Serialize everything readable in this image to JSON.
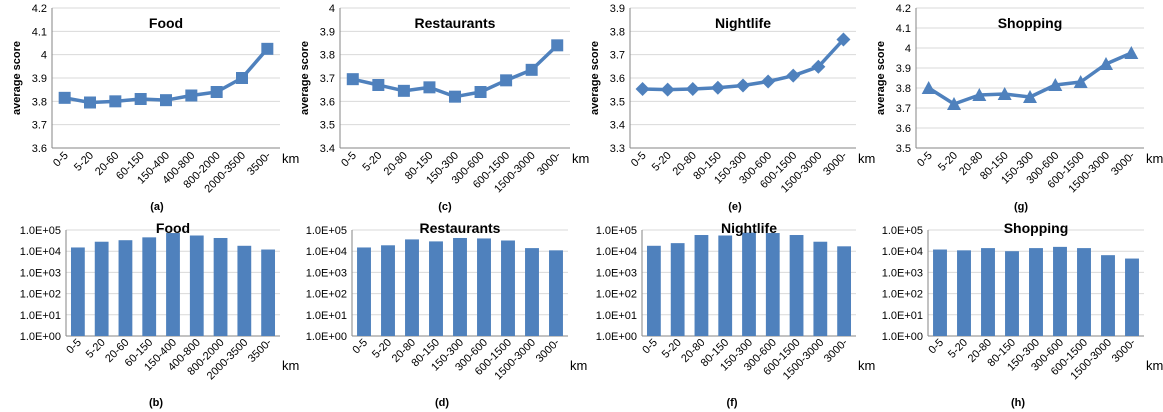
{
  "chart_data": [
    {
      "type": "line",
      "title": "Food",
      "ylabel": "average score",
      "unit_label": "km",
      "panel_label": "(a)",
      "ylim": [
        3.6,
        4.2
      ],
      "yticks": [
        "3.6",
        "3.7",
        "3.8",
        "3.9",
        "4",
        "4.1",
        "4.2"
      ],
      "categories": [
        "0-5",
        "5-20",
        "20-60",
        "60-150",
        "150-400",
        "400-800",
        "800-2000",
        "2000-3500",
        "3500-"
      ],
      "values": [
        3.815,
        3.795,
        3.8,
        3.81,
        3.805,
        3.825,
        3.84,
        3.9,
        4.025
      ],
      "marker": "square",
      "color": "#4f81bd",
      "grid": true
    },
    {
      "type": "line",
      "title": "Restaurants",
      "ylabel": "average score",
      "unit_label": "km",
      "panel_label": "(c)",
      "ylim": [
        3.4,
        4.0
      ],
      "yticks": [
        "3.4",
        "3.5",
        "3.6",
        "3.7",
        "3.8",
        "3.9",
        "4"
      ],
      "categories": [
        "0-5",
        "5-20",
        "20-80",
        "80-150",
        "150-300",
        "300-600",
        "600-1500",
        "1500-3000",
        "3000-"
      ],
      "values": [
        3.695,
        3.67,
        3.645,
        3.66,
        3.62,
        3.64,
        3.69,
        3.735,
        3.84
      ],
      "marker": "square",
      "color": "#4f81bd",
      "grid": true
    },
    {
      "type": "line",
      "title": "Nightlife",
      "ylabel": "average score",
      "unit_label": "km",
      "panel_label": "(e)",
      "ylim": [
        3.3,
        3.9
      ],
      "yticks": [
        "3.3",
        "3.4",
        "3.5",
        "3.6",
        "3.7",
        "3.8",
        "3.9"
      ],
      "categories": [
        "0-5",
        "5-20",
        "20-80",
        "80-150",
        "150-300",
        "300-600",
        "600-1500",
        "1500-3000",
        "3000-"
      ],
      "values": [
        3.553,
        3.55,
        3.553,
        3.558,
        3.568,
        3.585,
        3.61,
        3.648,
        3.765
      ],
      "marker": "diamond",
      "color": "#4f81bd",
      "grid": true
    },
    {
      "type": "line",
      "title": "Shopping",
      "ylabel": "average score",
      "unit_label": "km",
      "panel_label": "(g)",
      "ylim": [
        3.5,
        4.2
      ],
      "yticks": [
        "3.5",
        "3.6",
        "3.7",
        "3.8",
        "3.9",
        "4",
        "4.1",
        "4.2"
      ],
      "categories": [
        "0-5",
        "5-20",
        "20-80",
        "80-150",
        "150-300",
        "300-600",
        "600-1500",
        "1500-3000",
        "3000-"
      ],
      "values": [
        3.8,
        3.72,
        3.765,
        3.77,
        3.755,
        3.815,
        3.83,
        3.92,
        3.975
      ],
      "marker": "triangle",
      "color": "#4f81bd",
      "grid": true
    },
    {
      "type": "bar",
      "title": "Food",
      "unit_label": "km",
      "panel_label": "(b)",
      "scale": "log",
      "ylim": [
        1,
        100000
      ],
      "yticks": [
        "1.0E+00",
        "1.0E+01",
        "1.0E+02",
        "1.0E+03",
        "1.0E+04",
        "1.0E+05"
      ],
      "categories": [
        "0-5",
        "5-20",
        "20-60",
        "60-150",
        "150-400",
        "400-800",
        "800-2000",
        "2000-3500",
        "3500-"
      ],
      "values": [
        15000,
        28000,
        33000,
        45000,
        72000,
        55000,
        42000,
        18000,
        12000
      ],
      "color": "#4f81bd",
      "grid": true
    },
    {
      "type": "bar",
      "title": "Restaurants",
      "unit_label": "km",
      "panel_label": "(d)",
      "scale": "log",
      "ylim": [
        1,
        100000
      ],
      "yticks": [
        "1.0E+00",
        "1.0E+01",
        "1.0E+02",
        "1.0E+03",
        "1.0E+04",
        "1.0E+05"
      ],
      "categories": [
        "0-5",
        "5-20",
        "20-80",
        "80-150",
        "150-300",
        "300-600",
        "600-1500",
        "1500-3000",
        "3000-"
      ],
      "values": [
        15000,
        19000,
        36000,
        29000,
        42000,
        40000,
        32000,
        14000,
        11000
      ],
      "color": "#4f81bd",
      "grid": true
    },
    {
      "type": "bar",
      "title": "Nightlife",
      "unit_label": "km",
      "panel_label": "(f)",
      "scale": "log",
      "ylim": [
        1,
        100000
      ],
      "yticks": [
        "1.0E+00",
        "1.0E+01",
        "1.0E+02",
        "1.0E+03",
        "1.0E+04",
        "1.0E+05"
      ],
      "categories": [
        "0-5",
        "5-20",
        "20-80",
        "80-150",
        "150-300",
        "300-600",
        "600-1500",
        "1500-3000",
        "3000-"
      ],
      "values": [
        18000,
        24000,
        58000,
        55000,
        75000,
        72000,
        58000,
        28000,
        17000
      ],
      "color": "#4f81bd",
      "grid": true
    },
    {
      "type": "bar",
      "title": "Shopping",
      "unit_label": "km",
      "panel_label": "(h)",
      "scale": "log",
      "ylim": [
        1,
        100000
      ],
      "yticks": [
        "1.0E+00",
        "1.0E+01",
        "1.0E+02",
        "1.0E+03",
        "1.0E+04",
        "1.0E+05"
      ],
      "categories": [
        "0-5",
        "5-20",
        "20-80",
        "80-150",
        "150-300",
        "300-600",
        "600-1500",
        "1500-3000",
        "3000-"
      ],
      "values": [
        12000,
        11000,
        14000,
        10000,
        14000,
        16000,
        14000,
        6500,
        4500
      ],
      "color": "#4f81bd",
      "grid": true
    }
  ]
}
